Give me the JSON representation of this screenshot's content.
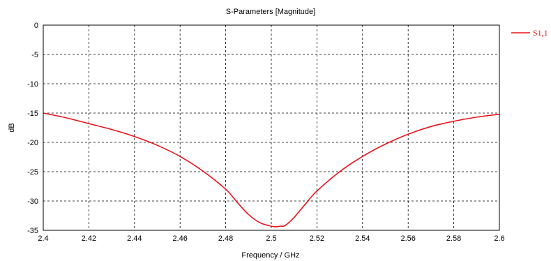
{
  "chart_data": {
    "type": "line",
    "title": "S-Parameters [Magnitude]",
    "xlabel": "Frequency / GHz",
    "ylabel": "dB",
    "xlim": [
      2.4,
      2.6
    ],
    "ylim": [
      -35,
      0
    ],
    "grid": true,
    "legend_position": "top-right",
    "x_ticks": [
      "2.4",
      "2.42",
      "2.44",
      "2.46",
      "2.48",
      "2.5",
      "2.52",
      "2.54",
      "2.56",
      "2.58",
      "2.6"
    ],
    "y_ticks": [
      "0",
      "-5",
      "-10",
      "-15",
      "-20",
      "-25",
      "-30",
      "-35"
    ],
    "series": [
      {
        "name": "S1,1",
        "color": "#e8141c",
        "x": [
          2.4,
          2.41,
          2.42,
          2.43,
          2.44,
          2.45,
          2.46,
          2.47,
          2.48,
          2.485,
          2.49,
          2.495,
          2.5,
          2.502,
          2.504,
          2.506,
          2.51,
          2.515,
          2.52,
          2.53,
          2.54,
          2.55,
          2.56,
          2.57,
          2.58,
          2.59,
          2.6
        ],
        "y": [
          -15.0,
          -15.8,
          -16.8,
          -17.8,
          -19.0,
          -20.5,
          -22.4,
          -24.9,
          -28.0,
          -30.2,
          -32.3,
          -33.7,
          -34.3,
          -34.4,
          -34.3,
          -34.2,
          -32.8,
          -30.5,
          -28.3,
          -25.0,
          -22.4,
          -20.3,
          -18.6,
          -17.3,
          -16.4,
          -15.7,
          -15.2
        ]
      }
    ]
  }
}
